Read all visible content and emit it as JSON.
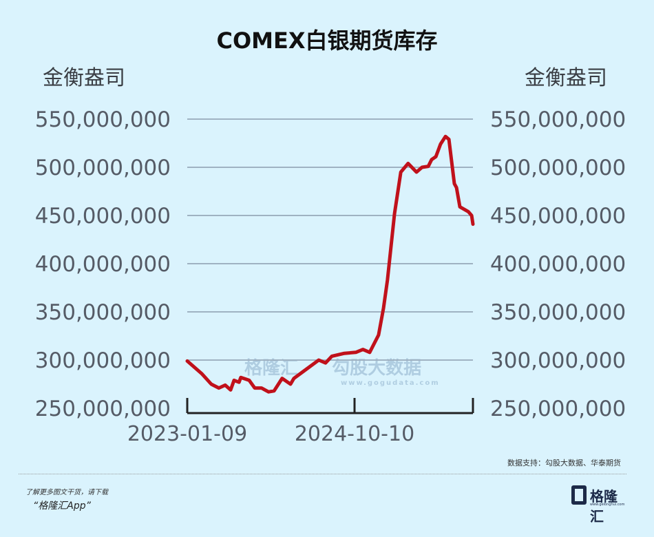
{
  "chart_data": {
    "type": "line",
    "title": "COMEX白银期货库存",
    "ylabel_left": "金衡盎司",
    "ylabel_right": "金衡盎司",
    "ylim": [
      250000000,
      550000000
    ],
    "yticks": [
      250000000,
      300000000,
      350000000,
      400000000,
      450000000,
      500000000,
      550000000
    ],
    "ytick_labels": [
      "250,000,000",
      "300,000,000",
      "350,000,000",
      "400,000,000",
      "450,000,000",
      "500,000,000",
      "550,000,000"
    ],
    "xlim": [
      "2023-01-09",
      "2026-01-06"
    ],
    "xticks": [
      "2023-01-09",
      "2024-10-10",
      "2026-01-06"
    ],
    "xtick_labels": [
      "2023-01-09",
      "2024-10-10",
      ""
    ],
    "grid": true,
    "line_color": "#c0111b",
    "series": [
      {
        "x": [
          "2023-01-09",
          "2023-03-05",
          "2023-04-11",
          "2023-05-10",
          "2023-06-03",
          "2023-06-24",
          "2023-07-07",
          "2023-07-26",
          "2023-08-02",
          "2023-09-03",
          "2023-09-24",
          "2023-10-20",
          "2023-11-16",
          "2023-12-07",
          "2024-01-07",
          "2024-02-08",
          "2024-02-21",
          "2024-03-27",
          "2024-05-26",
          "2024-06-21",
          "2024-07-15",
          "2024-09-01",
          "2024-10-15",
          "2024-11-11",
          "2024-12-07",
          "2025-01-10",
          "2025-01-29",
          "2025-02-13",
          "2025-03-12",
          "2025-04-05",
          "2025-05-03",
          "2025-06-04",
          "2025-06-25",
          "2025-07-19",
          "2025-08-01",
          "2025-08-17",
          "2025-09-04",
          "2025-09-23",
          "2025-10-06",
          "2025-10-27",
          "2025-11-04",
          "2025-11-17",
          "2025-12-19",
          "2026-01-01",
          "2026-01-06"
        ],
        "values": [
          299000000,
          286000000,
          275000000,
          271000000,
          274000000,
          269000000,
          279000000,
          277000000,
          282000000,
          279000000,
          271000000,
          271000000,
          267000000,
          268000000,
          281000000,
          275000000,
          281000000,
          288000000,
          300000000,
          297000000,
          304000000,
          307000000,
          308000000,
          311000000,
          308000000,
          326000000,
          354000000,
          383000000,
          452000000,
          495000000,
          504000000,
          495000000,
          500000000,
          501000000,
          508000000,
          511000000,
          524000000,
          532000000,
          529000000,
          483000000,
          479000000,
          459000000,
          454000000,
          450000000,
          441000000
        ]
      }
    ]
  },
  "watermark": {
    "brand": "格隆汇",
    "partner": "勾股大数据",
    "url": "www.gogudata.com"
  },
  "footer": {
    "source": "数据支持：勾股大数据、华泰期货",
    "promo_line1": "了解更多图文干货，请下载",
    "promo_line2": "“格隆汇App”",
    "logo_text": "格隆汇",
    "logo_url": "www.gelonghui.com"
  }
}
